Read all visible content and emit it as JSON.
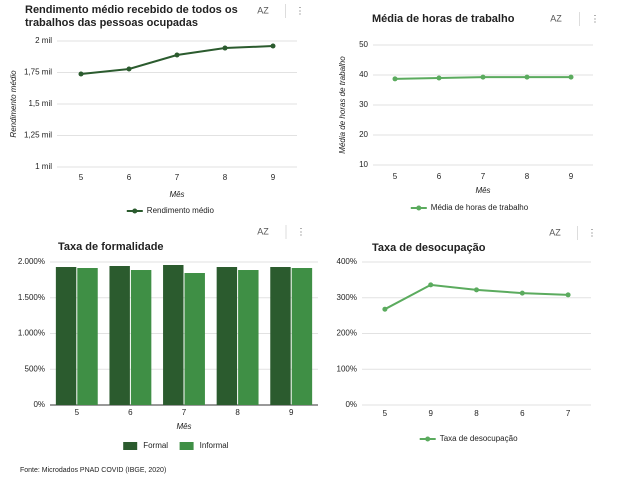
{
  "chart_data": [
    {
      "type": "line",
      "title": "Rendimento médio recebido de todos os trabalhos das pessoas ocupadas",
      "ylabel": "Rendimento médio",
      "xlabel": "Mês",
      "categories": [
        "5",
        "6",
        "7",
        "8",
        "9"
      ],
      "series": [
        {
          "name": "Rendimento médio",
          "color": "#2b5b2e",
          "values": [
            1738,
            1778,
            1889,
            1944,
            1960
          ]
        }
      ],
      "ylim": [
        1000,
        2000
      ],
      "yticks": [
        {
          "value": 1000,
          "label": "1 mil"
        },
        {
          "value": 1250,
          "label": "1,25 mil"
        },
        {
          "value": 1500,
          "label": "1,5 mil"
        },
        {
          "value": 1750,
          "label": "1,75 mil"
        },
        {
          "value": 2000,
          "label": "2 mil"
        }
      ],
      "grid": true
    },
    {
      "type": "line",
      "title": "Média de horas de trabalho",
      "ylabel": "Média de horas de trabalho",
      "xlabel": "Mês",
      "categories": [
        "5",
        "6",
        "7",
        "8",
        "9"
      ],
      "series": [
        {
          "name": "Média de horas de trabalho",
          "color": "#5bab5e",
          "values": [
            38.7,
            39.0,
            39.3,
            39.3,
            39.3
          ]
        }
      ],
      "ylim": [
        10,
        50
      ],
      "yticks": [
        10,
        20,
        30,
        40,
        50
      ],
      "grid": true
    },
    {
      "type": "bar",
      "title": "Taxa de formalidade",
      "xlabel": "Mês",
      "categories": [
        "5",
        "6",
        "7",
        "8",
        "9"
      ],
      "series": [
        {
          "name": "Formal",
          "color": "#2b5b2e",
          "values": [
            1930,
            1944,
            1958,
            1930,
            1930
          ]
        },
        {
          "name": "Informal",
          "color": "#3f8f45",
          "values": [
            1916,
            1888,
            1846,
            1888,
            1916
          ]
        }
      ],
      "ylim": [
        0,
        2000
      ],
      "yticks": [
        {
          "value": 0,
          "label": "0%"
        },
        {
          "value": 500,
          "label": "500%"
        },
        {
          "value": 1000,
          "label": "1.000%"
        },
        {
          "value": 1500,
          "label": "1.500%"
        },
        {
          "value": 2000,
          "label": "2.000%"
        }
      ],
      "grid": true
    },
    {
      "type": "line",
      "title": "Taxa de desocupação",
      "categories": [
        "5",
        "9",
        "8",
        "6",
        "7"
      ],
      "series": [
        {
          "name": "Taxa de desocupação",
          "color": "#5bab5e",
          "values": [
            268,
            336,
            322,
            313,
            308
          ]
        }
      ],
      "ylim": [
        0,
        400
      ],
      "yticks": [
        {
          "value": 0,
          "label": "0%"
        },
        {
          "value": 100,
          "label": "100%"
        },
        {
          "value": 200,
          "label": "200%"
        },
        {
          "value": 300,
          "label": "300%"
        },
        {
          "value": 400,
          "label": "400%"
        }
      ],
      "grid": true
    }
  ],
  "toolbar": [
    "AZ",
    "⋮"
  ],
  "source": "Fonte: Microdados PNAD COVID (IBGE, 2020)"
}
